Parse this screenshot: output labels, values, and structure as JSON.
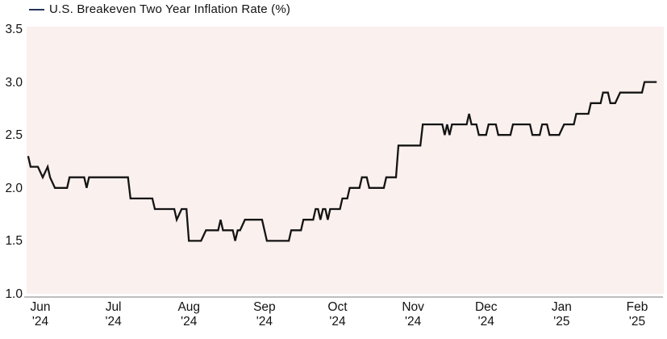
{
  "legend": {
    "label": "U.S. Breakeven Two Year Inflation Rate (%)",
    "swatch_color": "#27355d"
  },
  "chart_data": {
    "type": "line",
    "title": "U.S. Breakeven Two Year Inflation Rate (%)",
    "unit": "%",
    "grid": false,
    "legend_position": "top-left",
    "plot_bg_color": "#faf0ee",
    "axis_line_color": "#a8a8a8",
    "x_axis": {
      "ticks": [
        {
          "date": "2024-06-01",
          "month": "Jun",
          "year": "'24"
        },
        {
          "date": "2024-07-01",
          "month": "Jul",
          "year": "'24"
        },
        {
          "date": "2024-08-01",
          "month": "Aug",
          "year": "'24"
        },
        {
          "date": "2024-09-01",
          "month": "Sep",
          "year": "'24"
        },
        {
          "date": "2024-10-01",
          "month": "Oct",
          "year": "'24"
        },
        {
          "date": "2024-11-01",
          "month": "Nov",
          "year": "'24"
        },
        {
          "date": "2024-12-01",
          "month": "Dec",
          "year": "'24"
        },
        {
          "date": "2025-01-01",
          "month": "Jan",
          "year": "'25"
        },
        {
          "date": "2025-02-01",
          "month": "Feb",
          "year": "'25"
        }
      ]
    },
    "y_axis": {
      "min": 1.0,
      "max": 3.5,
      "ticks": [
        {
          "value": 3.5,
          "label": "3.5"
        },
        {
          "value": 3.0,
          "label": "3.0"
        },
        {
          "value": 2.5,
          "label": "2.5"
        },
        {
          "value": 2.0,
          "label": "2.0"
        },
        {
          "value": 1.5,
          "label": "1.5"
        },
        {
          "value": 1.0,
          "label": "1.0"
        }
      ]
    },
    "series": [
      {
        "name": "U.S. Breakeven Two Year Inflation Rate (%)",
        "color": "#141414",
        "points": [
          [
            "2024-05-27",
            2.3
          ],
          [
            "2024-05-28",
            2.2
          ],
          [
            "2024-05-31",
            2.2
          ],
          [
            "2024-06-02",
            2.1
          ],
          [
            "2024-06-04",
            2.2
          ],
          [
            "2024-06-05",
            2.1
          ],
          [
            "2024-06-07",
            2.0
          ],
          [
            "2024-06-12",
            2.0
          ],
          [
            "2024-06-13",
            2.1
          ],
          [
            "2024-06-19",
            2.1
          ],
          [
            "2024-06-20",
            2.0
          ],
          [
            "2024-06-21",
            2.1
          ],
          [
            "2024-07-07",
            2.1
          ],
          [
            "2024-07-08",
            1.9
          ],
          [
            "2024-07-17",
            1.9
          ],
          [
            "2024-07-18",
            1.8
          ],
          [
            "2024-07-26",
            1.8
          ],
          [
            "2024-07-27",
            1.7
          ],
          [
            "2024-07-29",
            1.8
          ],
          [
            "2024-07-31",
            1.8
          ],
          [
            "2024-08-01",
            1.5
          ],
          [
            "2024-08-06",
            1.5
          ],
          [
            "2024-08-08",
            1.6
          ],
          [
            "2024-08-13",
            1.6
          ],
          [
            "2024-08-14",
            1.7
          ],
          [
            "2024-08-15",
            1.6
          ],
          [
            "2024-08-19",
            1.6
          ],
          [
            "2024-08-20",
            1.5
          ],
          [
            "2024-08-21",
            1.6
          ],
          [
            "2024-08-22",
            1.6
          ],
          [
            "2024-08-24",
            1.7
          ],
          [
            "2024-08-31",
            1.7
          ],
          [
            "2024-09-02",
            1.5
          ],
          [
            "2024-09-11",
            1.5
          ],
          [
            "2024-09-12",
            1.6
          ],
          [
            "2024-09-16",
            1.6
          ],
          [
            "2024-09-17",
            1.7
          ],
          [
            "2024-09-21",
            1.7
          ],
          [
            "2024-09-22",
            1.8
          ],
          [
            "2024-09-23",
            1.8
          ],
          [
            "2024-09-24",
            1.7
          ],
          [
            "2024-09-25",
            1.8
          ],
          [
            "2024-09-26",
            1.8
          ],
          [
            "2024-09-27",
            1.7
          ],
          [
            "2024-09-28",
            1.8
          ],
          [
            "2024-10-02",
            1.8
          ],
          [
            "2024-10-03",
            1.9
          ],
          [
            "2024-10-05",
            1.9
          ],
          [
            "2024-10-06",
            2.0
          ],
          [
            "2024-10-10",
            2.0
          ],
          [
            "2024-10-11",
            2.1
          ],
          [
            "2024-10-13",
            2.1
          ],
          [
            "2024-10-14",
            2.0
          ],
          [
            "2024-10-20",
            2.0
          ],
          [
            "2024-10-21",
            2.1
          ],
          [
            "2024-10-25",
            2.1
          ],
          [
            "2024-10-26",
            2.4
          ],
          [
            "2024-11-04",
            2.4
          ],
          [
            "2024-11-05",
            2.6
          ],
          [
            "2024-11-13",
            2.6
          ],
          [
            "2024-11-14",
            2.5
          ],
          [
            "2024-11-15",
            2.6
          ],
          [
            "2024-11-16",
            2.5
          ],
          [
            "2024-11-17",
            2.6
          ],
          [
            "2024-11-21",
            2.6
          ],
          [
            "2024-11-23",
            2.6
          ],
          [
            "2024-11-24",
            2.7
          ],
          [
            "2024-11-25",
            2.6
          ],
          [
            "2024-11-27",
            2.6
          ],
          [
            "2024-11-28",
            2.5
          ],
          [
            "2024-12-01",
            2.5
          ],
          [
            "2024-12-02",
            2.6
          ],
          [
            "2024-12-05",
            2.6
          ],
          [
            "2024-12-06",
            2.5
          ],
          [
            "2024-12-11",
            2.5
          ],
          [
            "2024-12-12",
            2.6
          ],
          [
            "2024-12-19",
            2.6
          ],
          [
            "2024-12-20",
            2.5
          ],
          [
            "2024-12-23",
            2.5
          ],
          [
            "2024-12-24",
            2.6
          ],
          [
            "2024-12-26",
            2.6
          ],
          [
            "2024-12-27",
            2.5
          ],
          [
            "2024-12-31",
            2.5
          ],
          [
            "2025-01-02",
            2.6
          ],
          [
            "2025-01-06",
            2.6
          ],
          [
            "2025-01-07",
            2.7
          ],
          [
            "2025-01-12",
            2.7
          ],
          [
            "2025-01-13",
            2.8
          ],
          [
            "2025-01-17",
            2.8
          ],
          [
            "2025-01-18",
            2.9
          ],
          [
            "2025-01-20",
            2.9
          ],
          [
            "2025-01-21",
            2.8
          ],
          [
            "2025-01-23",
            2.8
          ],
          [
            "2025-01-25",
            2.9
          ],
          [
            "2025-02-03",
            2.9
          ],
          [
            "2025-02-04",
            3.0
          ],
          [
            "2025-02-09",
            3.0
          ]
        ]
      }
    ]
  }
}
